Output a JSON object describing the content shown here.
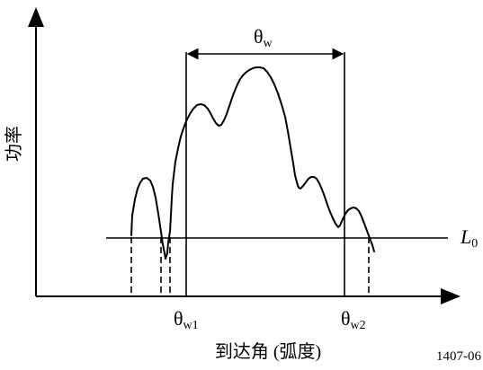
{
  "labels": {
    "y_axis": "功率",
    "x_axis": "到达角 (弧度)",
    "theta": "θ",
    "sub_w": "w",
    "sub_w1": "w1",
    "sub_w2": "w2",
    "level_L": "L",
    "level_sub": "0",
    "figure_id": "1407-06"
  }
}
